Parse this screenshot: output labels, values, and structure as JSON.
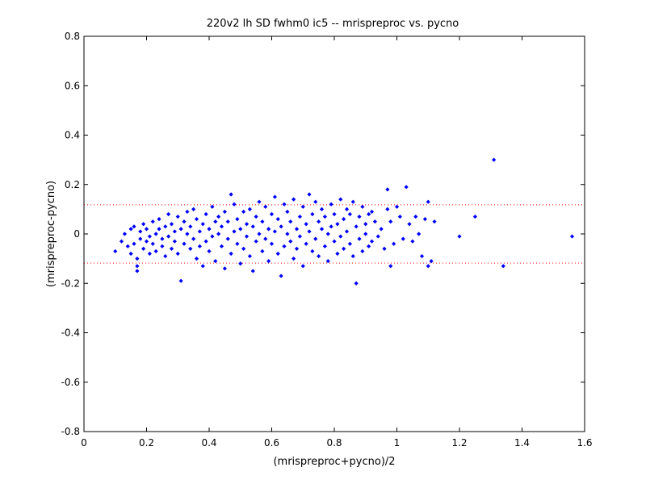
{
  "chart_data": {
    "type": "scatter",
    "title": "220v2 lh SD fwhm0 ic5 -- mrispreproc vs. pycno",
    "xlabel": "(mrispreproc+pycno)/2",
    "ylabel": "(mrispreproc-pycno)",
    "xlim": [
      0,
      1.6
    ],
    "ylim": [
      -0.8,
      0.8
    ],
    "x_ticks": [
      "0",
      "0.2",
      "0.4",
      "0.6",
      "0.8",
      "1",
      "1.2",
      "1.4",
      "1.6"
    ],
    "y_ticks": [
      "-0.8",
      "-0.6",
      "-0.4",
      "-0.2",
      "0",
      "0.2",
      "0.4",
      "0.6",
      "0.8"
    ],
    "grid": false,
    "reference_lines": [
      {
        "y": 0.118,
        "style": "dotted",
        "color": "#ff0000"
      },
      {
        "y": -0.118,
        "style": "dotted",
        "color": "#ff0000"
      }
    ],
    "marker_color": "#0000ff",
    "series": [
      {
        "points": [
          [
            0.1,
            -0.07
          ],
          [
            0.12,
            -0.03
          ],
          [
            0.13,
            0.0
          ],
          [
            0.14,
            -0.05
          ],
          [
            0.15,
            0.02
          ],
          [
            0.15,
            -0.08
          ],
          [
            0.16,
            -0.04
          ],
          [
            0.16,
            0.03
          ],
          [
            0.17,
            -0.1
          ],
          [
            0.17,
            -0.15
          ],
          [
            0.17,
            -0.13
          ],
          [
            0.18,
            0.01
          ],
          [
            0.18,
            -0.02
          ],
          [
            0.19,
            -0.06
          ],
          [
            0.19,
            0.04
          ],
          [
            0.2,
            -0.03
          ],
          [
            0.2,
            0.02
          ],
          [
            0.21,
            -0.01
          ],
          [
            0.21,
            -0.08
          ],
          [
            0.22,
            0.05
          ],
          [
            0.22,
            -0.04
          ],
          [
            0.23,
            0.0
          ],
          [
            0.23,
            -0.07
          ],
          [
            0.24,
            0.06
          ],
          [
            0.24,
            0.02
          ],
          [
            0.25,
            -0.05
          ],
          [
            0.25,
            -0.02
          ],
          [
            0.26,
            0.03
          ],
          [
            0.26,
            -0.09
          ],
          [
            0.27,
            0.08
          ],
          [
            0.27,
            -0.01
          ],
          [
            0.28,
            0.04
          ],
          [
            0.28,
            -0.06
          ],
          [
            0.29,
            0.01
          ],
          [
            0.29,
            -0.03
          ],
          [
            0.3,
            0.07
          ],
          [
            0.3,
            -0.08
          ],
          [
            0.31,
            0.02
          ],
          [
            0.31,
            -0.19
          ],
          [
            0.32,
            0.05
          ],
          [
            0.32,
            -0.04
          ],
          [
            0.33,
            0.0
          ],
          [
            0.33,
            0.09
          ],
          [
            0.34,
            -0.06
          ],
          [
            0.34,
            0.03
          ],
          [
            0.35,
            -0.02
          ],
          [
            0.35,
            0.1
          ],
          [
            0.36,
            -0.1
          ],
          [
            0.36,
            0.06
          ],
          [
            0.37,
            0.01
          ],
          [
            0.37,
            -0.05
          ],
          [
            0.38,
            0.04
          ],
          [
            0.38,
            -0.13
          ],
          [
            0.39,
            0.08
          ],
          [
            0.39,
            -0.03
          ],
          [
            0.4,
            0.02
          ],
          [
            0.4,
            -0.07
          ],
          [
            0.41,
            0.11
          ],
          [
            0.41,
            -0.01
          ],
          [
            0.42,
            0.05
          ],
          [
            0.42,
            -0.11
          ],
          [
            0.43,
            0.0
          ],
          [
            0.43,
            0.07
          ],
          [
            0.44,
            -0.05
          ],
          [
            0.44,
            0.03
          ],
          [
            0.45,
            -0.14
          ],
          [
            0.45,
            0.09
          ],
          [
            0.46,
            -0.02
          ],
          [
            0.46,
            0.05
          ],
          [
            0.47,
            0.16
          ],
          [
            0.47,
            -0.08
          ],
          [
            0.48,
            0.01
          ],
          [
            0.48,
            0.12
          ],
          [
            0.49,
            -0.04
          ],
          [
            0.49,
            0.06
          ],
          [
            0.5,
            -0.12
          ],
          [
            0.5,
            0.02
          ],
          [
            0.51,
            0.09
          ],
          [
            0.51,
            -0.06
          ],
          [
            0.52,
            0.04
          ],
          [
            0.52,
            -0.01
          ],
          [
            0.53,
            0.1
          ],
          [
            0.53,
            -0.09
          ],
          [
            0.54,
            0.03
          ],
          [
            0.54,
            -0.15
          ],
          [
            0.55,
            0.07
          ],
          [
            0.55,
            -0.03
          ],
          [
            0.56,
            0.13
          ],
          [
            0.56,
            0.0
          ],
          [
            0.57,
            -0.07
          ],
          [
            0.57,
            0.05
          ],
          [
            0.58,
            0.11
          ],
          [
            0.58,
            -0.02
          ],
          [
            0.59,
            0.02
          ],
          [
            0.59,
            -0.11
          ],
          [
            0.6,
            0.08
          ],
          [
            0.6,
            -0.04
          ],
          [
            0.61,
            0.15
          ],
          [
            0.61,
            0.01
          ],
          [
            0.62,
            -0.08
          ],
          [
            0.62,
            0.06
          ],
          [
            0.63,
            -0.17
          ],
          [
            0.63,
            0.03
          ],
          [
            0.64,
            0.12
          ],
          [
            0.64,
            -0.05
          ],
          [
            0.65,
            0.0
          ],
          [
            0.65,
            0.09
          ],
          [
            0.66,
            -0.03
          ],
          [
            0.66,
            0.05
          ],
          [
            0.67,
            -0.1
          ],
          [
            0.67,
            0.14
          ],
          [
            0.68,
            0.02
          ],
          [
            0.68,
            -0.06
          ],
          [
            0.69,
            0.07
          ],
          [
            0.69,
            -0.01
          ],
          [
            0.7,
            0.11
          ],
          [
            0.7,
            -0.13
          ],
          [
            0.71,
            0.04
          ],
          [
            0.71,
            -0.04
          ],
          [
            0.72,
            0.16
          ],
          [
            0.72,
            0.01
          ],
          [
            0.73,
            -0.07
          ],
          [
            0.73,
            0.08
          ],
          [
            0.74,
            0.13
          ],
          [
            0.74,
            -0.02
          ],
          [
            0.75,
            0.05
          ],
          [
            0.75,
            -0.09
          ],
          [
            0.76,
            0.1
          ],
          [
            0.76,
            0.02
          ],
          [
            0.77,
            -0.05
          ],
          [
            0.77,
            0.07
          ],
          [
            0.78,
            0.0
          ],
          [
            0.78,
            -0.11
          ],
          [
            0.79,
            0.12
          ],
          [
            0.79,
            0.03
          ],
          [
            0.8,
            -0.03
          ],
          [
            0.8,
            0.08
          ],
          [
            0.81,
            -0.08
          ],
          [
            0.81,
            0.04
          ],
          [
            0.82,
            0.14
          ],
          [
            0.82,
            -0.01
          ],
          [
            0.83,
            0.06
          ],
          [
            0.83,
            -0.06
          ],
          [
            0.84,
            0.1
          ],
          [
            0.84,
            0.01
          ],
          [
            0.85,
            -0.04
          ],
          [
            0.85,
            0.08
          ],
          [
            0.86,
            0.13
          ],
          [
            0.86,
            -0.09
          ],
          [
            0.87,
            -0.2
          ],
          [
            0.87,
            0.03
          ],
          [
            0.88,
            0.07
          ],
          [
            0.88,
            -0.02
          ],
          [
            0.89,
            0.11
          ],
          [
            0.89,
            -0.07
          ],
          [
            0.9,
            0.04
          ],
          [
            0.9,
            0.0
          ],
          [
            0.91,
            -0.05
          ],
          [
            0.91,
            0.08
          ],
          [
            0.92,
            0.09
          ],
          [
            0.92,
            -0.03
          ],
          [
            0.93,
            0.05
          ],
          [
            0.94,
            -0.01
          ],
          [
            0.95,
            0.02
          ],
          [
            0.96,
            -0.06
          ],
          [
            0.97,
            0.18
          ],
          [
            0.97,
            0.1
          ],
          [
            0.98,
            -0.13
          ],
          [
            0.98,
            0.05
          ],
          [
            0.99,
            -0.04
          ],
          [
            1.0,
            0.11
          ],
          [
            1.01,
            0.07
          ],
          [
            1.02,
            -0.02
          ],
          [
            1.03,
            0.19
          ],
          [
            1.04,
            0.04
          ],
          [
            1.05,
            -0.03
          ],
          [
            1.06,
            0.07
          ],
          [
            1.07,
            0.0
          ],
          [
            1.08,
            -0.09
          ],
          [
            1.09,
            0.06
          ],
          [
            1.1,
            0.13
          ],
          [
            1.1,
            -0.13
          ],
          [
            1.11,
            -0.11
          ],
          [
            1.12,
            0.05
          ],
          [
            1.2,
            -0.01
          ],
          [
            1.25,
            0.07
          ],
          [
            1.31,
            0.3
          ],
          [
            1.34,
            -0.13
          ],
          [
            1.56,
            -0.01
          ]
        ]
      }
    ]
  }
}
